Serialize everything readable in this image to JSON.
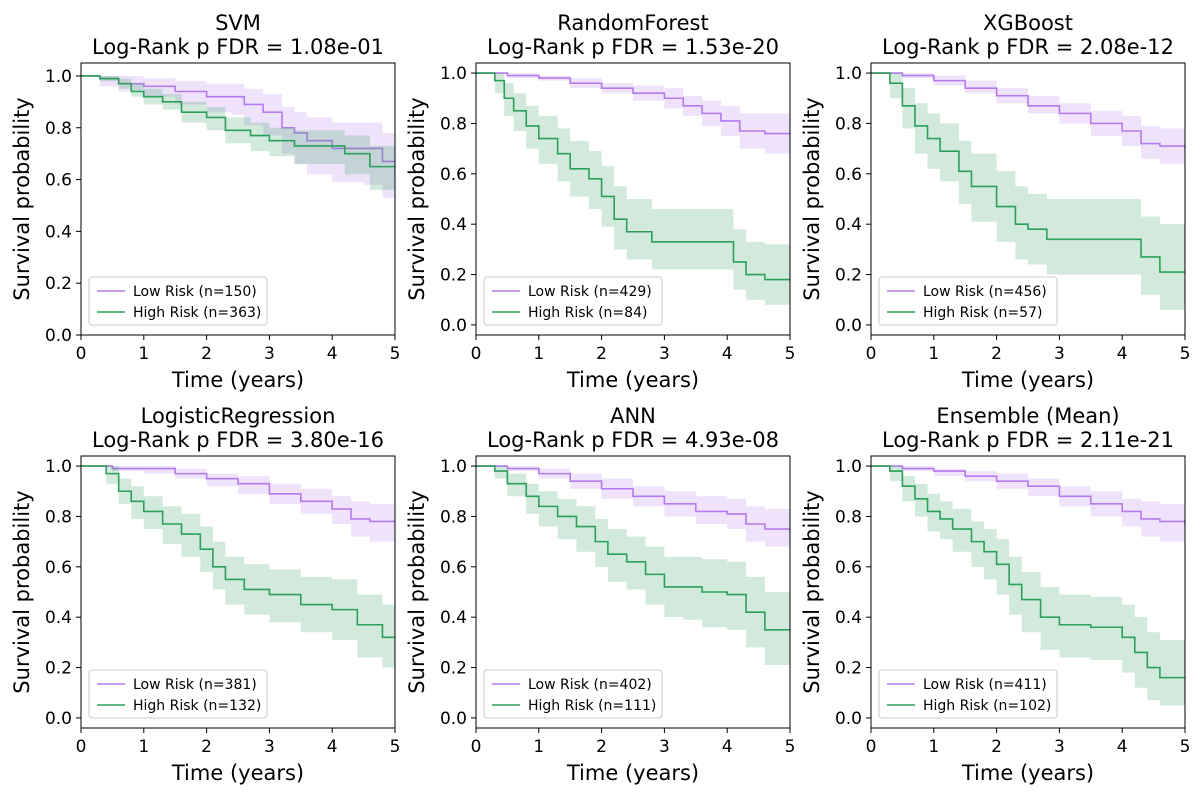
{
  "colors": {
    "low": "#b57bee",
    "high": "#2ca05a",
    "low_fill": "#b57bee",
    "high_fill": "#2ca05a"
  },
  "chart_data": [
    {
      "type": "line",
      "title": "SVM",
      "subtitle": "Log-Rank p FDR = 1.08e-01",
      "xlabel": "Time (years)",
      "ylabel": "Survival probability",
      "xlim": [
        0,
        5
      ],
      "ylim": [
        0,
        1.05
      ],
      "xticks": [
        "0",
        "1",
        "2",
        "3",
        "4",
        "5"
      ],
      "yticks": [
        "0.0",
        "0.2",
        "0.4",
        "0.6",
        "0.8",
        "1.0"
      ],
      "legend_position": "lower-left",
      "series": [
        {
          "name": "Low Risk (n=150)",
          "group": "low",
          "x": [
            0,
            0.3,
            0.6,
            1.0,
            1.5,
            2.0,
            2.4,
            2.6,
            2.9,
            3.2,
            3.4,
            3.6,
            4.0,
            4.5,
            4.8,
            5.0
          ],
          "y": [
            1.0,
            0.99,
            0.97,
            0.96,
            0.94,
            0.92,
            0.92,
            0.89,
            0.86,
            0.8,
            0.78,
            0.75,
            0.72,
            0.72,
            0.67,
            0.67
          ],
          "lower": [
            1.0,
            0.96,
            0.94,
            0.92,
            0.89,
            0.86,
            0.85,
            0.81,
            0.77,
            0.7,
            0.66,
            0.62,
            0.59,
            0.58,
            0.53,
            0.53
          ],
          "upper": [
            1.0,
            1.0,
            1.0,
            0.99,
            0.98,
            0.97,
            0.97,
            0.95,
            0.93,
            0.88,
            0.86,
            0.84,
            0.82,
            0.82,
            0.78,
            0.78
          ]
        },
        {
          "name": "High Risk (n=363)",
          "group": "high",
          "x": [
            0,
            0.3,
            0.6,
            0.8,
            1.0,
            1.3,
            1.6,
            2.0,
            2.3,
            2.7,
            3.0,
            3.4,
            3.8,
            4.2,
            4.6,
            5.0
          ],
          "y": [
            1.0,
            0.99,
            0.97,
            0.94,
            0.92,
            0.9,
            0.86,
            0.84,
            0.79,
            0.77,
            0.75,
            0.73,
            0.73,
            0.7,
            0.65,
            0.64
          ],
          "lower": [
            1.0,
            0.98,
            0.95,
            0.92,
            0.89,
            0.87,
            0.82,
            0.79,
            0.74,
            0.71,
            0.69,
            0.66,
            0.66,
            0.62,
            0.56,
            0.54
          ],
          "upper": [
            1.0,
            1.0,
            0.99,
            0.97,
            0.95,
            0.93,
            0.9,
            0.88,
            0.84,
            0.82,
            0.8,
            0.79,
            0.79,
            0.77,
            0.73,
            0.72
          ]
        }
      ]
    },
    {
      "type": "line",
      "title": "RandomForest",
      "subtitle": "Log-Rank p FDR = 1.53e-20",
      "xlabel": "Time (years)",
      "ylabel": "Survival probability",
      "xlim": [
        0,
        5
      ],
      "ylim": [
        -0.04,
        1.04
      ],
      "xticks": [
        "0",
        "1",
        "2",
        "3",
        "4",
        "5"
      ],
      "yticks": [
        "0.0",
        "0.2",
        "0.4",
        "0.6",
        "0.8",
        "1.0"
      ],
      "legend_position": "lower-left",
      "series": [
        {
          "name": "Low Risk (n=429)",
          "group": "low",
          "x": [
            0,
            0.5,
            1.0,
            1.5,
            2.0,
            2.5,
            3.0,
            3.3,
            3.6,
            3.9,
            4.2,
            4.6,
            5.0
          ],
          "y": [
            1.0,
            0.99,
            0.98,
            0.96,
            0.94,
            0.92,
            0.9,
            0.87,
            0.84,
            0.81,
            0.77,
            0.76,
            0.75
          ],
          "lower": [
            1.0,
            0.98,
            0.97,
            0.94,
            0.92,
            0.89,
            0.86,
            0.83,
            0.79,
            0.75,
            0.7,
            0.68,
            0.67
          ],
          "upper": [
            1.0,
            1.0,
            0.99,
            0.98,
            0.96,
            0.95,
            0.94,
            0.91,
            0.89,
            0.87,
            0.84,
            0.84,
            0.83
          ]
        },
        {
          "name": "High Risk (n=84)",
          "group": "high",
          "x": [
            0,
            0.3,
            0.45,
            0.6,
            0.8,
            1.0,
            1.3,
            1.5,
            1.8,
            2.0,
            2.2,
            2.4,
            2.8,
            3.2,
            3.6,
            4.1,
            4.3,
            4.6,
            5.0
          ],
          "y": [
            1.0,
            0.97,
            0.9,
            0.85,
            0.79,
            0.74,
            0.68,
            0.62,
            0.58,
            0.51,
            0.42,
            0.37,
            0.33,
            0.33,
            0.33,
            0.25,
            0.2,
            0.18,
            0.18
          ],
          "lower": [
            1.0,
            0.92,
            0.83,
            0.77,
            0.7,
            0.64,
            0.57,
            0.51,
            0.46,
            0.39,
            0.3,
            0.26,
            0.22,
            0.22,
            0.22,
            0.14,
            0.1,
            0.08,
            0.08
          ],
          "upper": [
            1.0,
            1.0,
            0.96,
            0.92,
            0.87,
            0.83,
            0.78,
            0.73,
            0.69,
            0.63,
            0.55,
            0.5,
            0.46,
            0.46,
            0.46,
            0.38,
            0.33,
            0.32,
            0.32
          ]
        }
      ]
    },
    {
      "type": "line",
      "title": "XGBoost",
      "subtitle": "Log-Rank p FDR = 2.08e-12",
      "xlabel": "Time (years)",
      "ylabel": "Survival probability",
      "xlim": [
        0,
        5
      ],
      "ylim": [
        -0.04,
        1.04
      ],
      "xticks": [
        "0",
        "1",
        "2",
        "3",
        "4",
        "5"
      ],
      "yticks": [
        "0.0",
        "0.2",
        "0.4",
        "0.6",
        "0.8",
        "1.0"
      ],
      "legend_position": "lower-left",
      "series": [
        {
          "name": "Low Risk (n=456)",
          "group": "low",
          "x": [
            0,
            0.5,
            1.0,
            1.5,
            2.0,
            2.5,
            3.0,
            3.5,
            4.0,
            4.3,
            4.6,
            5.0
          ],
          "y": [
            1.0,
            0.99,
            0.97,
            0.94,
            0.91,
            0.87,
            0.84,
            0.8,
            0.77,
            0.72,
            0.71,
            0.7
          ],
          "lower": [
            1.0,
            0.98,
            0.95,
            0.92,
            0.88,
            0.84,
            0.8,
            0.75,
            0.71,
            0.66,
            0.64,
            0.63
          ],
          "upper": [
            1.0,
            1.0,
            0.99,
            0.97,
            0.94,
            0.91,
            0.88,
            0.85,
            0.83,
            0.79,
            0.78,
            0.77
          ]
        },
        {
          "name": "High Risk (n=57)",
          "group": "high",
          "x": [
            0,
            0.3,
            0.5,
            0.7,
            0.9,
            1.1,
            1.4,
            1.6,
            2.0,
            2.3,
            2.5,
            2.8,
            3.2,
            3.6,
            4.0,
            4.3,
            4.6,
            5.0
          ],
          "y": [
            1.0,
            0.96,
            0.87,
            0.79,
            0.74,
            0.69,
            0.61,
            0.55,
            0.47,
            0.4,
            0.38,
            0.34,
            0.34,
            0.34,
            0.34,
            0.27,
            0.21,
            0.21
          ],
          "lower": [
            1.0,
            0.9,
            0.78,
            0.68,
            0.62,
            0.57,
            0.48,
            0.41,
            0.33,
            0.26,
            0.24,
            0.2,
            0.2,
            0.2,
            0.2,
            0.12,
            0.06,
            0.06
          ],
          "upper": [
            1.0,
            1.0,
            0.94,
            0.88,
            0.84,
            0.8,
            0.73,
            0.68,
            0.61,
            0.55,
            0.52,
            0.5,
            0.5,
            0.5,
            0.5,
            0.43,
            0.4,
            0.4
          ]
        }
      ]
    },
    {
      "type": "line",
      "title": "LogisticRegression",
      "subtitle": "Log-Rank p FDR = 3.80e-16",
      "xlabel": "Time (years)",
      "ylabel": "Survival probability",
      "xlim": [
        0,
        5
      ],
      "ylim": [
        -0.04,
        1.04
      ],
      "xticks": [
        "0",
        "1",
        "2",
        "3",
        "4",
        "5"
      ],
      "yticks": [
        "0.0",
        "0.2",
        "0.4",
        "0.6",
        "0.8",
        "1.0"
      ],
      "legend_position": "lower-left",
      "series": [
        {
          "name": "Low Risk (n=381)",
          "group": "low",
          "x": [
            0,
            0.5,
            1.0,
            1.5,
            2.0,
            2.5,
            3.0,
            3.5,
            4.0,
            4.3,
            4.6,
            5.0
          ],
          "y": [
            1.0,
            0.99,
            0.99,
            0.97,
            0.95,
            0.93,
            0.89,
            0.86,
            0.83,
            0.79,
            0.78,
            0.78
          ],
          "lower": [
            1.0,
            0.98,
            0.97,
            0.95,
            0.92,
            0.89,
            0.85,
            0.81,
            0.77,
            0.72,
            0.7,
            0.7
          ],
          "upper": [
            1.0,
            1.0,
            1.0,
            0.99,
            0.97,
            0.96,
            0.93,
            0.91,
            0.88,
            0.86,
            0.85,
            0.85
          ]
        },
        {
          "name": "High Risk (n=132)",
          "group": "high",
          "x": [
            0,
            0.4,
            0.6,
            0.8,
            1.0,
            1.3,
            1.6,
            1.9,
            2.1,
            2.3,
            2.6,
            3.0,
            3.5,
            4.0,
            4.4,
            4.8,
            5.0
          ],
          "y": [
            1.0,
            0.97,
            0.9,
            0.86,
            0.82,
            0.77,
            0.73,
            0.67,
            0.6,
            0.55,
            0.51,
            0.49,
            0.45,
            0.43,
            0.37,
            0.32,
            0.32
          ],
          "lower": [
            1.0,
            0.93,
            0.85,
            0.79,
            0.75,
            0.69,
            0.64,
            0.58,
            0.51,
            0.45,
            0.41,
            0.38,
            0.34,
            0.31,
            0.24,
            0.2,
            0.2
          ],
          "upper": [
            1.0,
            1.0,
            0.95,
            0.92,
            0.88,
            0.84,
            0.81,
            0.76,
            0.7,
            0.64,
            0.61,
            0.59,
            0.56,
            0.55,
            0.49,
            0.45,
            0.45
          ]
        }
      ]
    },
    {
      "type": "line",
      "title": "ANN",
      "subtitle": "Log-Rank p FDR = 4.93e-08",
      "xlabel": "Time (years)",
      "ylabel": "Survival probability",
      "xlim": [
        0,
        5
      ],
      "ylim": [
        -0.04,
        1.04
      ],
      "xticks": [
        "0",
        "1",
        "2",
        "3",
        "4",
        "5"
      ],
      "yticks": [
        "0.0",
        "0.2",
        "0.4",
        "0.6",
        "0.8",
        "1.0"
      ],
      "legend_position": "lower-left",
      "series": [
        {
          "name": "Low Risk (n=402)",
          "group": "low",
          "x": [
            0,
            0.5,
            1.0,
            1.5,
            2.0,
            2.5,
            3.0,
            3.5,
            4.0,
            4.3,
            4.6,
            5.0
          ],
          "y": [
            1.0,
            0.99,
            0.97,
            0.94,
            0.91,
            0.88,
            0.85,
            0.82,
            0.81,
            0.77,
            0.75,
            0.74
          ],
          "lower": [
            1.0,
            0.98,
            0.95,
            0.91,
            0.87,
            0.84,
            0.8,
            0.77,
            0.75,
            0.7,
            0.68,
            0.67
          ],
          "upper": [
            1.0,
            1.0,
            0.99,
            0.97,
            0.95,
            0.92,
            0.9,
            0.88,
            0.87,
            0.84,
            0.83,
            0.82
          ]
        },
        {
          "name": "High Risk (n=111)",
          "group": "high",
          "x": [
            0,
            0.3,
            0.5,
            0.8,
            1.0,
            1.3,
            1.6,
            1.9,
            2.1,
            2.4,
            2.7,
            3.0,
            3.3,
            3.6,
            4.0,
            4.3,
            4.6,
            5.0
          ],
          "y": [
            1.0,
            0.98,
            0.93,
            0.88,
            0.84,
            0.8,
            0.76,
            0.7,
            0.65,
            0.62,
            0.57,
            0.52,
            0.52,
            0.5,
            0.49,
            0.42,
            0.35,
            0.35
          ],
          "lower": [
            1.0,
            0.95,
            0.88,
            0.81,
            0.76,
            0.71,
            0.66,
            0.6,
            0.54,
            0.51,
            0.45,
            0.4,
            0.39,
            0.36,
            0.35,
            0.28,
            0.21,
            0.21
          ],
          "upper": [
            1.0,
            1.0,
            0.97,
            0.93,
            0.9,
            0.87,
            0.84,
            0.79,
            0.75,
            0.72,
            0.68,
            0.64,
            0.64,
            0.63,
            0.62,
            0.56,
            0.5,
            0.5
          ]
        }
      ]
    },
    {
      "type": "line",
      "title": "Ensemble (Mean)",
      "subtitle": "Log-Rank p FDR = 2.11e-21",
      "xlabel": "Time (years)",
      "ylabel": "Survival probability",
      "xlim": [
        0,
        5
      ],
      "ylim": [
        -0.04,
        1.04
      ],
      "xticks": [
        "0",
        "1",
        "2",
        "3",
        "4",
        "5"
      ],
      "yticks": [
        "0.0",
        "0.2",
        "0.4",
        "0.6",
        "0.8",
        "1.0"
      ],
      "legend_position": "lower-left",
      "series": [
        {
          "name": "Low Risk (n=411)",
          "group": "low",
          "x": [
            0,
            0.5,
            1.0,
            1.5,
            2.0,
            2.5,
            3.0,
            3.5,
            4.0,
            4.3,
            4.6,
            5.0
          ],
          "y": [
            1.0,
            0.99,
            0.98,
            0.96,
            0.94,
            0.92,
            0.88,
            0.85,
            0.82,
            0.79,
            0.78,
            0.77
          ],
          "lower": [
            1.0,
            0.98,
            0.96,
            0.94,
            0.91,
            0.88,
            0.84,
            0.8,
            0.76,
            0.72,
            0.7,
            0.69
          ],
          "upper": [
            1.0,
            1.0,
            0.99,
            0.98,
            0.97,
            0.95,
            0.92,
            0.9,
            0.87,
            0.86,
            0.85,
            0.84
          ]
        },
        {
          "name": "High Risk (n=102)",
          "group": "high",
          "x": [
            0,
            0.3,
            0.5,
            0.7,
            0.9,
            1.1,
            1.3,
            1.6,
            1.8,
            2.0,
            2.2,
            2.4,
            2.7,
            3.0,
            3.5,
            4.0,
            4.2,
            4.4,
            4.6,
            5.0
          ],
          "y": [
            1.0,
            0.98,
            0.92,
            0.87,
            0.82,
            0.79,
            0.75,
            0.7,
            0.66,
            0.61,
            0.53,
            0.47,
            0.4,
            0.37,
            0.36,
            0.32,
            0.26,
            0.2,
            0.16,
            0.16
          ],
          "lower": [
            1.0,
            0.94,
            0.86,
            0.8,
            0.74,
            0.71,
            0.66,
            0.6,
            0.55,
            0.49,
            0.41,
            0.34,
            0.27,
            0.24,
            0.23,
            0.18,
            0.12,
            0.07,
            0.05,
            0.05
          ],
          "upper": [
            1.0,
            1.0,
            0.96,
            0.93,
            0.89,
            0.86,
            0.83,
            0.78,
            0.75,
            0.71,
            0.64,
            0.58,
            0.52,
            0.49,
            0.48,
            0.45,
            0.4,
            0.34,
            0.31,
            0.31
          ]
        }
      ]
    }
  ]
}
